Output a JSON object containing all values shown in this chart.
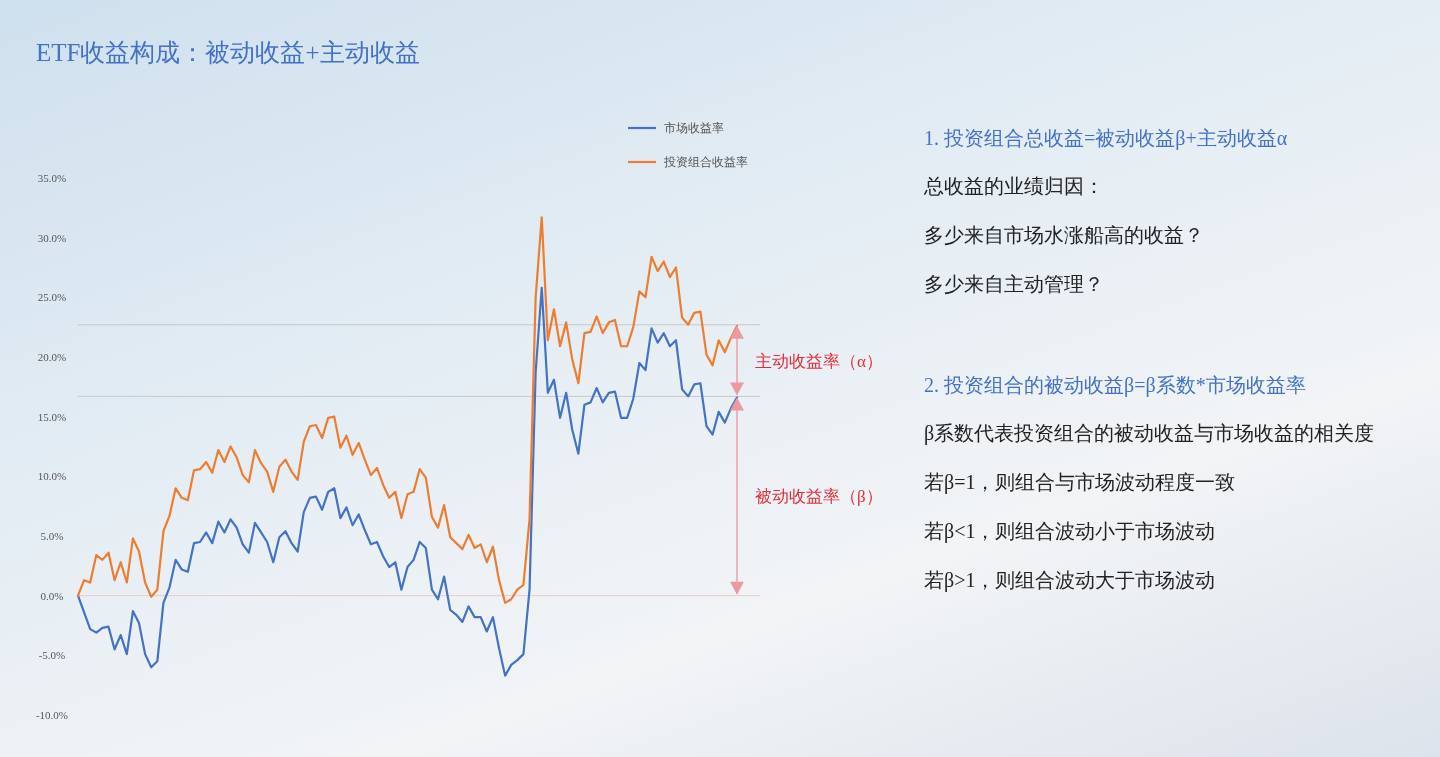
{
  "chart_data": [
    {
      "type": "line",
      "title": "ETF收益构成：被动收益+主动收益",
      "categories": [
        null,
        null,
        null,
        null,
        null,
        null,
        null,
        null,
        null,
        null,
        null,
        null,
        null,
        null,
        null,
        null,
        null,
        null,
        null,
        null,
        null,
        null,
        null,
        null,
        null,
        null,
        null,
        null,
        null,
        null,
        null,
        null,
        null,
        null,
        null,
        null,
        null,
        null,
        null,
        null,
        null,
        null,
        null,
        null,
        null,
        null,
        null,
        null,
        null,
        null,
        null,
        null,
        null,
        null,
        null,
        null,
        null,
        null,
        null,
        null,
        null,
        null,
        null,
        null,
        null,
        null,
        null,
        null,
        null,
        null,
        null,
        null,
        null,
        null,
        null,
        null,
        null,
        null,
        null,
        null,
        null,
        null,
        null,
        null,
        null,
        null,
        null,
        null,
        null,
        null,
        null,
        null,
        null,
        null,
        null,
        null,
        null,
        null,
        null,
        null,
        null,
        null,
        null,
        null,
        null,
        null,
        null,
        null,
        null
      ],
      "series": [
        {
          "name": "市场收益率",
          "color": "#4472c4",
          "values": [
            0.0,
            -1.4,
            -2.8,
            -3.1,
            -2.7,
            -2.6,
            -4.5,
            -3.3,
            -4.9,
            -1.3,
            -2.3,
            -4.9,
            -6.0,
            -5.5,
            -0.6,
            0.7,
            3.0,
            2.2,
            2.0,
            4.4,
            4.5,
            5.3,
            4.4,
            6.2,
            5.3,
            6.4,
            5.7,
            4.3,
            3.6,
            6.1,
            5.3,
            4.5,
            2.8,
            4.9,
            5.4,
            4.4,
            3.7,
            7.0,
            8.2,
            8.3,
            7.2,
            8.7,
            9.0,
            6.5,
            7.4,
            5.9,
            6.8,
            5.5,
            4.3,
            4.5,
            3.3,
            2.4,
            2.8,
            0.5,
            2.4,
            3.0,
            4.5,
            4.0,
            0.5,
            -0.3,
            1.6,
            -1.2,
            -1.6,
            -2.2,
            -0.9,
            -1.8,
            -1.8,
            -3.0,
            -1.8,
            -4.4,
            -6.7,
            -5.8,
            -5.4,
            -4.9,
            0.5,
            18.7,
            25.8,
            17.0,
            18.1,
            14.9,
            17.0,
            13.9,
            11.9,
            16.0,
            16.2,
            17.4,
            16.2,
            17.0,
            17.1,
            14.9,
            14.9,
            16.5,
            19.5,
            18.9,
            22.4,
            21.2,
            22.0,
            20.9,
            21.4,
            17.3,
            16.7,
            17.7,
            17.8,
            14.2,
            13.5,
            15.4,
            14.5,
            15.7,
            16.6
          ]
        },
        {
          "name": "投资组合收益率",
          "color": "#ed7d31",
          "values": [
            0.0,
            1.3,
            1.1,
            3.4,
            3.0,
            3.6,
            1.3,
            2.8,
            1.1,
            4.8,
            3.7,
            1.1,
            -0.1,
            0.5,
            5.4,
            6.7,
            9.0,
            8.2,
            8.0,
            10.5,
            10.6,
            11.2,
            10.3,
            12.2,
            11.2,
            12.5,
            11.6,
            10.1,
            9.5,
            12.2,
            11.1,
            10.4,
            8.7,
            10.8,
            11.4,
            10.4,
            9.7,
            12.9,
            14.2,
            14.3,
            13.2,
            14.9,
            15.0,
            12.4,
            13.4,
            11.8,
            12.8,
            11.4,
            10.1,
            10.7,
            9.3,
            8.2,
            8.7,
            6.5,
            8.5,
            8.7,
            10.6,
            9.9,
            6.6,
            5.7,
            7.6,
            4.9,
            4.4,
            3.9,
            5.1,
            4.0,
            4.3,
            2.8,
            4.1,
            1.3,
            -0.6,
            -0.3,
            0.5,
            0.9,
            6.4,
            25.0,
            31.7,
            21.4,
            24.0,
            20.9,
            22.9,
            19.8,
            17.8,
            22.0,
            22.1,
            23.4,
            22.0,
            22.9,
            23.1,
            20.9,
            20.9,
            22.5,
            25.5,
            25.0,
            28.4,
            27.2,
            28.0,
            26.7,
            27.5,
            23.3,
            22.7,
            23.7,
            23.8,
            20.2,
            19.3,
            21.4,
            20.4,
            21.6,
            22.6
          ]
        }
      ],
      "ylim": [
        -10,
        35
      ],
      "yticks": [
        {
          "value": -10,
          "label": "-10.0%"
        },
        {
          "value": -5,
          "label": "-5.0%"
        },
        {
          "value": 0,
          "label": "0.0%"
        },
        {
          "value": 5,
          "label": "5.0%"
        },
        {
          "value": 10,
          "label": "10.0%"
        },
        {
          "value": 15,
          "label": "15.0%"
        },
        {
          "value": 20,
          "label": "20.0%"
        },
        {
          "value": 25,
          "label": "25.0%"
        },
        {
          "value": 30,
          "label": "30.0%"
        },
        {
          "value": 35,
          "label": "35.0%"
        }
      ],
      "ref_lines": [
        {
          "axis": "y",
          "value": 22.7,
          "color": "#c8c8c8"
        },
        {
          "axis": "y",
          "value": 16.7,
          "color": "#c8c8c8"
        },
        {
          "axis": "y",
          "value": 0,
          "color": "#f0c8c8"
        }
      ],
      "annotations": [
        "主动收益率（α）",
        "被动收益率（β）"
      ],
      "legend": "top",
      "grid": false,
      "tick_labels": "y",
      "marker": "none",
      "line_style": "solid"
    },
    {
      "type": "other",
      "title": "1. 投资组合总收益=被动收益β+主动收益α",
      "annotations": [
        "总收益的业绩归因：",
        "多少来自市场水涨船高的收益？",
        "多少来自主动管理？"
      ]
    },
    {
      "type": "other",
      "title": "2. 投资组合的被动收益β=β系数*市场收益率",
      "annotations": [
        "β系数代表投资组合的被动收益与市场收益的相关度",
        "若β=1，则组合与市场波动程度一致",
        "若β<1，则组合波动小于市场波动",
        "若β>1，则组合波动大于市场波动"
      ]
    }
  ]
}
